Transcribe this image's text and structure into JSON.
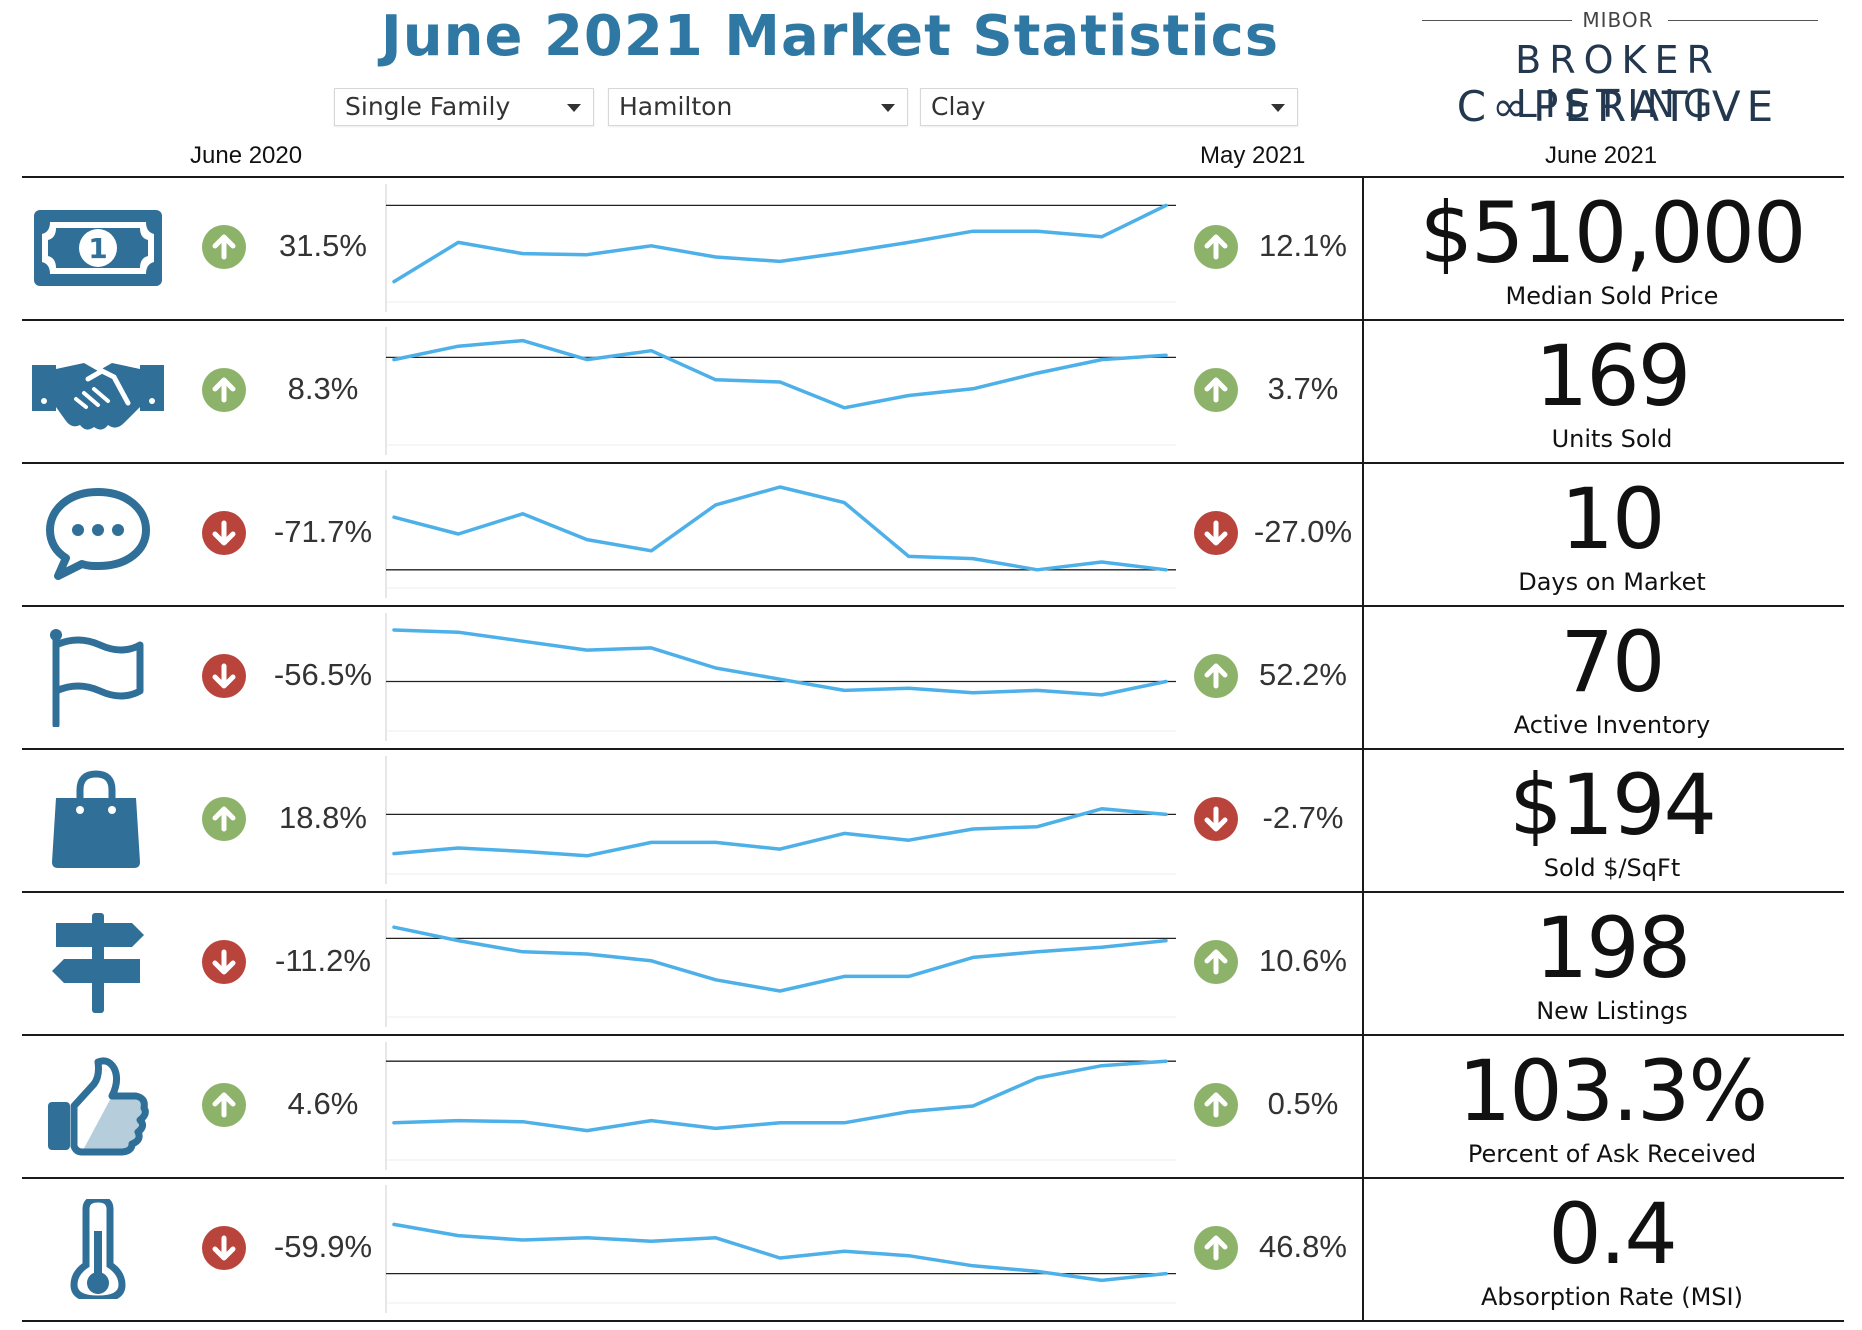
{
  "title": "June 2021 Market Statistics",
  "filters": [
    {
      "value": "Single Family"
    },
    {
      "value": "Hamilton"
    },
    {
      "value": "Clay"
    }
  ],
  "logo": {
    "top": "MIBOR",
    "line1": "BROKER LISTING",
    "line2": "C∞PERATIVE"
  },
  "columns": {
    "left": "June 2020",
    "middle": "May 2021",
    "right": "June 2021"
  },
  "colors": {
    "title": "#2f78a3",
    "icon": "#2f6f98",
    "up": "#8db26a",
    "down": "#b8443c",
    "line": "#4db0e8"
  },
  "metrics": [
    {
      "icon": "money-icon",
      "label": "Median Sold Price",
      "value": "$510,000",
      "yoy": {
        "dir": "up",
        "text": "31.5%"
      },
      "mom": {
        "dir": "up",
        "text": "12.1%"
      },
      "trend": [
        0.2,
        0.55,
        0.45,
        0.44,
        0.52,
        0.42,
        0.38,
        0.46,
        0.55,
        0.65,
        0.65,
        0.6,
        0.88
      ],
      "ref": 0.88
    },
    {
      "icon": "handshake-icon",
      "label": "Units Sold",
      "value": "169",
      "yoy": {
        "dir": "up",
        "text": "8.3%"
      },
      "mom": {
        "dir": "up",
        "text": "3.7%"
      },
      "trend": [
        0.78,
        0.9,
        0.95,
        0.78,
        0.86,
        0.6,
        0.58,
        0.35,
        0.46,
        0.52,
        0.66,
        0.78,
        0.82
      ],
      "ref": 0.8
    },
    {
      "icon": "chat-icon",
      "label": "Days on Market",
      "value": "10",
      "yoy": {
        "dir": "down",
        "text": "-71.7%"
      },
      "mom": {
        "dir": "down",
        "text": "-27.0%"
      },
      "trend": [
        0.65,
        0.5,
        0.68,
        0.45,
        0.35,
        0.76,
        0.92,
        0.78,
        0.3,
        0.28,
        0.18,
        0.25,
        0.18
      ],
      "ref": 0.18
    },
    {
      "icon": "flag-icon",
      "label": "Active Inventory",
      "value": "70",
      "yoy": {
        "dir": "down",
        "text": "-56.5%"
      },
      "mom": {
        "dir": "up",
        "text": "52.2%"
      },
      "trend": [
        0.92,
        0.9,
        0.82,
        0.74,
        0.76,
        0.58,
        0.48,
        0.38,
        0.4,
        0.36,
        0.38,
        0.34,
        0.46
      ],
      "ref": 0.46
    },
    {
      "icon": "shopping-bag-icon",
      "label": "Sold $/SqFt",
      "value": "$194",
      "yoy": {
        "dir": "up",
        "text": "18.8%"
      },
      "mom": {
        "dir": "down",
        "text": "-2.7%"
      },
      "trend": [
        0.2,
        0.25,
        0.22,
        0.18,
        0.3,
        0.3,
        0.24,
        0.38,
        0.32,
        0.42,
        0.44,
        0.6,
        0.55
      ],
      "ref": 0.55
    },
    {
      "icon": "signpost-icon",
      "label": "New Listings",
      "value": "198",
      "yoy": {
        "dir": "down",
        "text": "-11.2%"
      },
      "mom": {
        "dir": "up",
        "text": "10.6%"
      },
      "trend": [
        0.82,
        0.7,
        0.6,
        0.58,
        0.52,
        0.35,
        0.25,
        0.38,
        0.38,
        0.55,
        0.6,
        0.64,
        0.7
      ],
      "ref": 0.72
    },
    {
      "icon": "thumbs-up-icon",
      "label": "Percent of Ask Received",
      "value": "103.3%",
      "yoy": {
        "dir": "up",
        "text": "4.6%"
      },
      "mom": {
        "dir": "up",
        "text": "0.5%"
      },
      "trend": [
        0.35,
        0.37,
        0.36,
        0.28,
        0.37,
        0.3,
        0.35,
        0.35,
        0.45,
        0.5,
        0.75,
        0.86,
        0.9
      ],
      "ref": 0.9
    },
    {
      "icon": "thermometer-icon",
      "label": "Absorption Rate (MSI)",
      "value": "0.4",
      "yoy": {
        "dir": "down",
        "text": "-59.9%"
      },
      "mom": {
        "dir": "up",
        "text": "46.8%"
      },
      "trend": [
        0.72,
        0.62,
        0.58,
        0.6,
        0.57,
        0.6,
        0.42,
        0.48,
        0.44,
        0.35,
        0.3,
        0.22,
        0.28
      ],
      "ref": 0.28
    }
  ]
}
